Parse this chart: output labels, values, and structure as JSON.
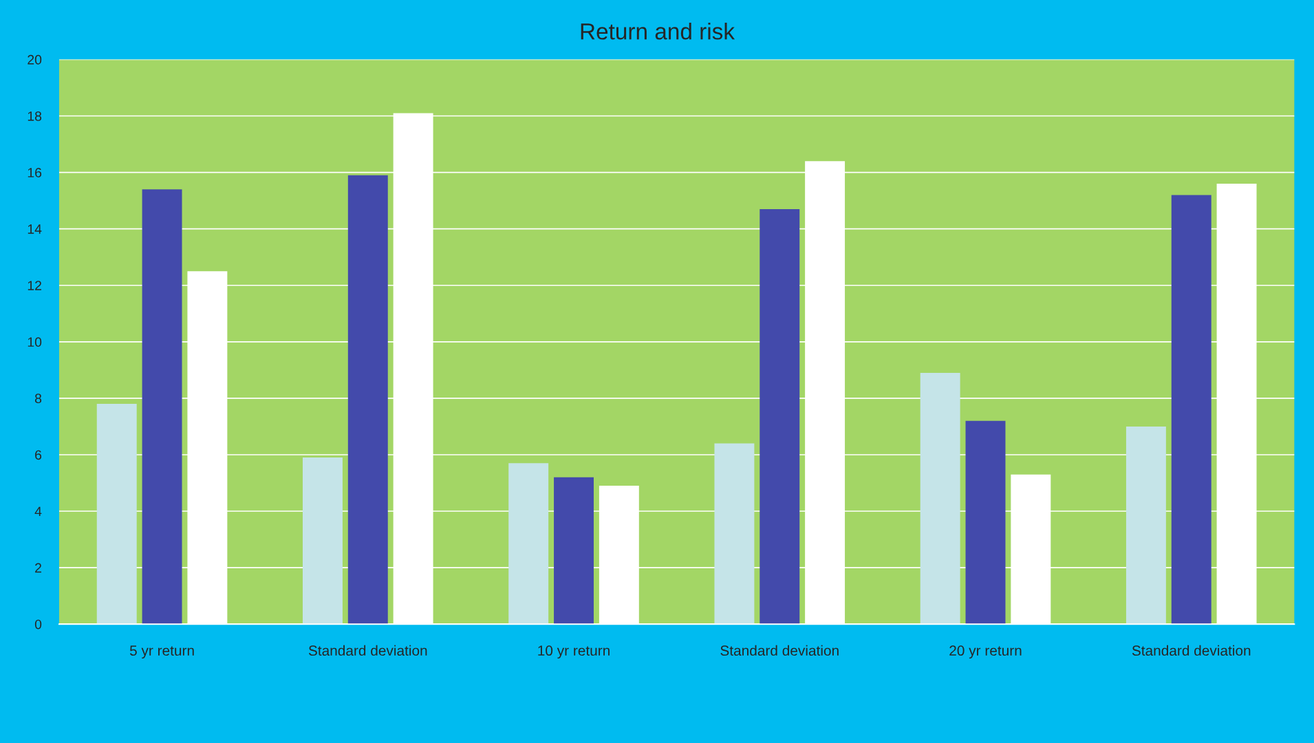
{
  "chart_data": {
    "type": "bar",
    "title": "Return and risk",
    "categories": [
      "5 yr return",
      "Standard deviation",
      "10 yr return",
      "Standard deviation",
      "20 yr return",
      "Standard deviation"
    ],
    "series": [
      {
        "color": "#c5e4e8",
        "values": [
          7.8,
          5.9,
          5.7,
          6.4,
          8.9,
          7.0
        ]
      },
      {
        "color": "#434aab",
        "values": [
          15.4,
          15.9,
          5.2,
          14.7,
          7.2,
          15.2
        ]
      },
      {
        "color": "#ffffff",
        "values": [
          12.5,
          18.1,
          4.9,
          16.4,
          5.3,
          15.6
        ]
      }
    ],
    "ylim": [
      0,
      20
    ],
    "yticks": [
      0,
      2,
      4,
      6,
      8,
      10,
      12,
      14,
      16,
      18,
      20
    ],
    "grid": "y"
  }
}
